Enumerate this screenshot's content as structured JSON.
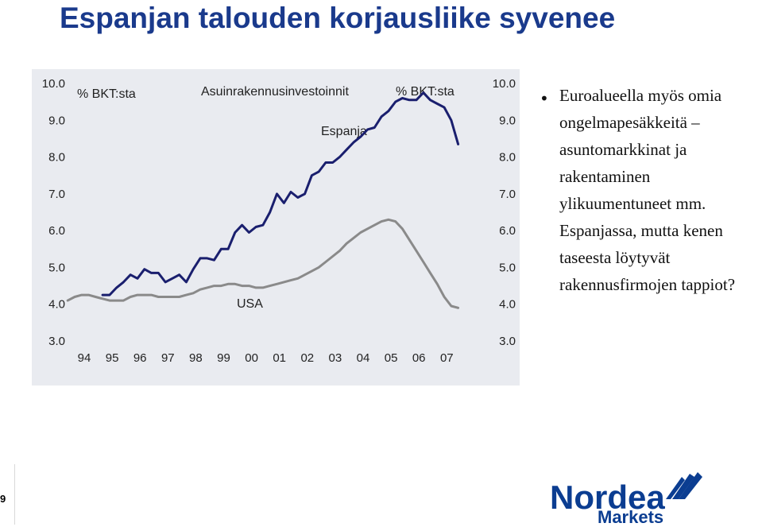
{
  "slide": {
    "title": "Espanjan talouden korjausliike syvenee",
    "bullet": "Euroalueella myös omia ongelmapesäkkeitä – asuntomarkkinat ja rakentaminen ylikuumentuneet mm. Espanjassa, mutta kenen taseesta löytyvät rakennusfirmojen tappiot?",
    "page_number": "9"
  },
  "logo": {
    "brand": "Nordea",
    "sub": "Markets",
    "color": "#0b3d91"
  },
  "chart_data": {
    "type": "line",
    "title": "Asuinrakennusinvestoinnit",
    "ylabel_left": "% BKT:sta",
    "ylabel_right": "% BKT:sta",
    "ylim": [
      3.0,
      10.0
    ],
    "yticks": [
      "3.0",
      "4.0",
      "5.0",
      "6.0",
      "7.0",
      "8.0",
      "9.0",
      "10.0"
    ],
    "xticks": [
      "94",
      "95",
      "96",
      "97",
      "98",
      "99",
      "00",
      "01",
      "02",
      "03",
      "04",
      "05",
      "06",
      "07"
    ],
    "grid": false,
    "series": [
      {
        "name": "Espanja",
        "color": "#1a1f6e",
        "x": [
          95.0,
          95.25,
          95.5,
          95.75,
          96.0,
          96.25,
          96.5,
          96.75,
          97.0,
          97.25,
          97.5,
          97.75,
          98.0,
          98.25,
          98.5,
          98.75,
          99.0,
          99.25,
          99.5,
          99.75,
          100.0,
          100.25,
          100.5,
          100.75,
          101.0,
          101.25,
          101.5,
          101.75,
          102.0,
          102.25,
          102.5,
          102.75,
          103.0,
          103.25,
          103.5,
          103.75,
          104.0,
          104.25,
          104.5,
          104.75,
          105.0,
          105.25,
          105.5,
          105.75,
          106.0,
          106.25,
          106.5,
          106.75,
          107.0,
          107.25,
          107.5,
          107.75
        ],
        "values": [
          4.25,
          4.25,
          4.45,
          4.6,
          4.8,
          4.7,
          4.95,
          4.85,
          4.85,
          4.6,
          4.7,
          4.8,
          4.6,
          4.95,
          5.25,
          5.25,
          5.2,
          5.5,
          5.5,
          5.95,
          6.15,
          5.95,
          6.1,
          6.15,
          6.5,
          7.0,
          6.75,
          7.05,
          6.9,
          7.0,
          7.5,
          7.6,
          7.85,
          7.85,
          8.0,
          8.2,
          8.4,
          8.55,
          8.75,
          8.8,
          9.1,
          9.25,
          9.5,
          9.6,
          9.55,
          9.55,
          9.75,
          9.55,
          9.45,
          9.35,
          9.0,
          8.35
        ]
      },
      {
        "name": "USA",
        "color": "#8a8a8a",
        "x": [
          93.75,
          94.0,
          94.25,
          94.5,
          94.75,
          95.0,
          95.25,
          95.5,
          95.75,
          96.0,
          96.25,
          96.5,
          96.75,
          97.0,
          97.25,
          97.5,
          97.75,
          98.0,
          98.25,
          98.5,
          98.75,
          99.0,
          99.25,
          99.5,
          99.75,
          100.0,
          100.25,
          100.5,
          100.75,
          101.0,
          101.25,
          101.5,
          101.75,
          102.0,
          102.25,
          102.5,
          102.75,
          103.0,
          103.25,
          103.5,
          103.75,
          104.0,
          104.25,
          104.5,
          104.75,
          105.0,
          105.25,
          105.5,
          105.75,
          106.0,
          106.25,
          106.5,
          106.75,
          107.0,
          107.25,
          107.5,
          107.75
        ],
        "values": [
          4.1,
          4.2,
          4.25,
          4.25,
          4.2,
          4.15,
          4.1,
          4.1,
          4.1,
          4.2,
          4.25,
          4.25,
          4.25,
          4.2,
          4.2,
          4.2,
          4.2,
          4.25,
          4.3,
          4.4,
          4.45,
          4.5,
          4.5,
          4.55,
          4.55,
          4.5,
          4.5,
          4.45,
          4.45,
          4.5,
          4.55,
          4.6,
          4.65,
          4.7,
          4.8,
          4.9,
          5.0,
          5.15,
          5.3,
          5.45,
          5.65,
          5.8,
          5.95,
          6.05,
          6.15,
          6.25,
          6.3,
          6.25,
          6.05,
          5.75,
          5.45,
          5.15,
          4.85,
          4.55,
          4.2,
          3.95,
          3.9
        ]
      }
    ]
  }
}
